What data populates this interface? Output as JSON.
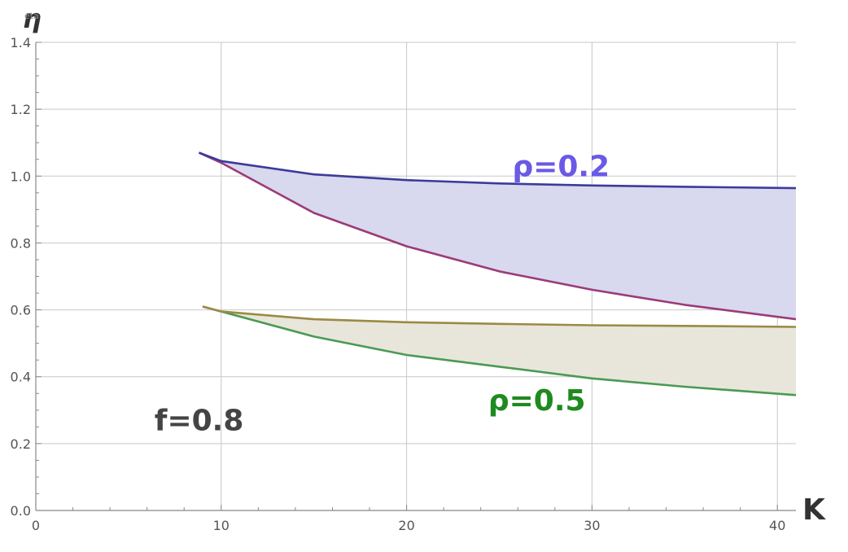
{
  "chart_data": {
    "type": "area",
    "xlabel": "K",
    "ylabel": "η",
    "ylabel_overlap": "eta",
    "xlim": [
      0,
      41
    ],
    "ylim": [
      0,
      1.4
    ],
    "x_ticks": [
      0,
      10,
      20,
      30,
      40
    ],
    "x_tick_labels": [
      "0",
      "10",
      "20",
      "30",
      "40"
    ],
    "y_ticks": [
      0,
      0.2,
      0.4,
      0.6,
      0.8,
      1.0,
      1.2,
      1.4
    ],
    "y_tick_labels": [
      "0.0",
      "0.2",
      "0.4",
      "0.6",
      "0.8",
      "1.0",
      "1.2",
      "1.4"
    ],
    "grid_x": [
      10,
      20,
      30,
      40
    ],
    "grid_y": [
      0.2,
      0.4,
      0.6,
      0.8,
      1.0,
      1.2,
      1.4
    ],
    "grid": true,
    "regions": [
      {
        "label": "ρ=0.2",
        "fill_color": "#d8d8ee",
        "upper": {
          "color": "#3b3b9a",
          "x": [
            8.8,
            10,
            15,
            20,
            25,
            30,
            35,
            41
          ],
          "y": [
            1.07,
            1.045,
            1.005,
            0.988,
            0.978,
            0.972,
            0.968,
            0.964
          ]
        },
        "lower": {
          "color": "#9b3b78",
          "x": [
            8.8,
            10,
            15,
            20,
            25,
            30,
            35,
            41
          ],
          "y": [
            1.07,
            1.04,
            0.89,
            0.79,
            0.715,
            0.66,
            0.615,
            0.572
          ]
        }
      },
      {
        "label": "ρ=0.5",
        "fill_color": "#e8e6db",
        "upper": {
          "color": "#9a8a44",
          "x": [
            9,
            10,
            15,
            20,
            25,
            30,
            35,
            41
          ],
          "y": [
            0.61,
            0.595,
            0.572,
            0.563,
            0.558,
            0.554,
            0.552,
            0.549
          ]
        },
        "lower": {
          "color": "#4a9a52",
          "x": [
            9,
            10,
            15,
            20,
            25,
            30,
            35,
            41
          ],
          "y": [
            0.61,
            0.595,
            0.52,
            0.465,
            0.43,
            0.395,
            0.37,
            0.345
          ]
        }
      }
    ],
    "annotations": [
      {
        "text": "ρ=0.2",
        "x": 25.7,
        "y": 1.0,
        "color": "#6a5ae6"
      },
      {
        "text": "ρ=0.5",
        "x": 24.4,
        "y": 0.3,
        "color": "#1f8a1f"
      },
      {
        "text": "f=0.8",
        "x": 6.4,
        "y": 0.24,
        "color": "#444444"
      }
    ]
  }
}
